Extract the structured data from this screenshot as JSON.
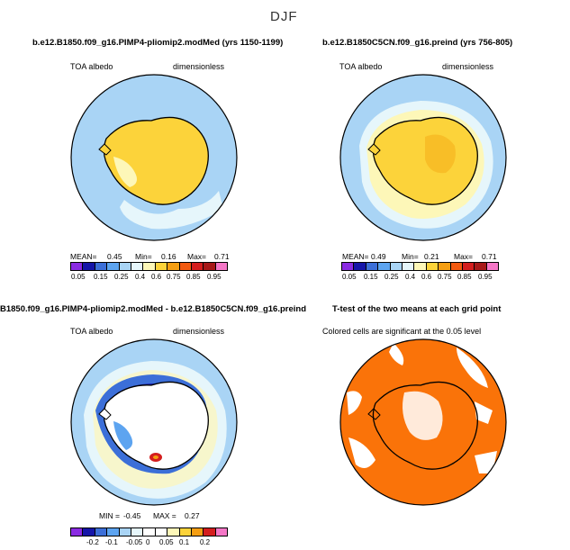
{
  "figure": {
    "title": "DJF",
    "panels": [
      {
        "title": "b.e12.B1850.f09_g16.PIMP4-pliomip2.modMed (yrs 1150-1199)",
        "left_label": "TOA albedo",
        "right_label": "dimensionless",
        "stats": {
          "mean_label": "MEAN=",
          "mean": "0.45",
          "min_label": "Min=",
          "min": "0.16",
          "max_label": "Max=",
          "max": "0.71"
        },
        "colorbar_ticks": [
          "0.05",
          "0.15",
          "0.25",
          "0.4",
          "0.6",
          "0.75",
          "0.85",
          "0.95"
        ]
      },
      {
        "title": "b.e12.B1850C5CN.f09_g16.preind (yrs 756-805)",
        "left_label": "TOA albedo",
        "right_label": "dimensionless",
        "stats": {
          "mean_label": "MEAN=",
          "mean": "0.49",
          "min_label": "Min=",
          "min": "0.21",
          "max_label": "Max=",
          "max": "0.71"
        },
        "colorbar_ticks": [
          "0.05",
          "0.15",
          "0.25",
          "0.4",
          "0.6",
          "0.75",
          "0.85",
          "0.95"
        ]
      },
      {
        "title": "B1850.f09_g16.PIMP4-pliomip2.modMed - b.e12.B1850C5CN.f09_g16.preind",
        "left_label": "TOA albedo",
        "right_label": "dimensionless",
        "stats": {
          "min_label": "MIN =",
          "min": "-0.45",
          "max_label": "MAX =",
          "max": "0.27"
        },
        "colorbar_ticks": [
          "-0.2",
          "-0.1",
          "-0.05",
          "0",
          "0.05",
          "0.1",
          "0.2"
        ]
      },
      {
        "title": "T-test of the two means at each grid point",
        "subtitle": "Colored cells are significant at the 0.05 level"
      }
    ]
  },
  "colors": {
    "ocean_blue": "#a9d4f5",
    "ice_yellow": "#fcd33a",
    "pale_yellow": "#fdf7b8",
    "white": "#ffffff",
    "significance_orange": "#fa7309",
    "coast": "#000000",
    "abs_colorbar": [
      "#8a2be2",
      "#1515a8",
      "#3c6fd8",
      "#5da4f0",
      "#a9d4f5",
      "#e6f6fb",
      "#fdf7b8",
      "#fcd33a",
      "#f59e12",
      "#f25a10",
      "#d41e1e",
      "#a71818",
      "#f577c7"
    ],
    "diff_colorbar": [
      "#8a2be2",
      "#1515a8",
      "#3c6fd8",
      "#5da4f0",
      "#a9d4f5",
      "#e6f6fb",
      "#ffffff",
      "#ffffff",
      "#fdf7b8",
      "#fcd33a",
      "#f59e12",
      "#d41e1e",
      "#f577c7"
    ]
  }
}
